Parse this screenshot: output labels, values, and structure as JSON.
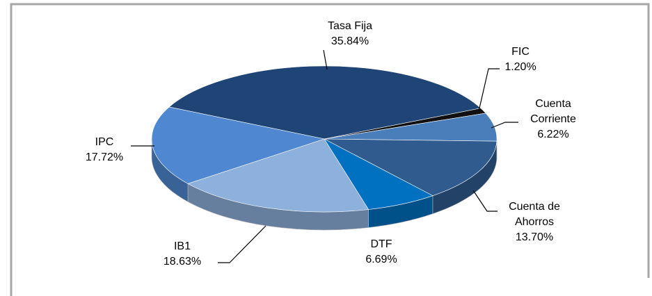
{
  "chart_data": {
    "type": "pie",
    "categories": [
      "Tasa Fija",
      "FIC",
      "Cuenta Corriente",
      "Cuenta de Ahorros",
      "DTF",
      "IB1",
      "IPC"
    ],
    "values": [
      35.84,
      1.2,
      6.22,
      13.7,
      6.69,
      18.63,
      17.72
    ],
    "value_labels": [
      "35.84%",
      "1.20%",
      "6.22%",
      "13.70%",
      "6.69%",
      "18.63%",
      "17.72%"
    ],
    "colors": [
      "#1f4577",
      "#111111",
      "#4a7ebb",
      "#2f5b8f",
      "#0070c0",
      "#8db0dc",
      "#4f88d0"
    ]
  }
}
